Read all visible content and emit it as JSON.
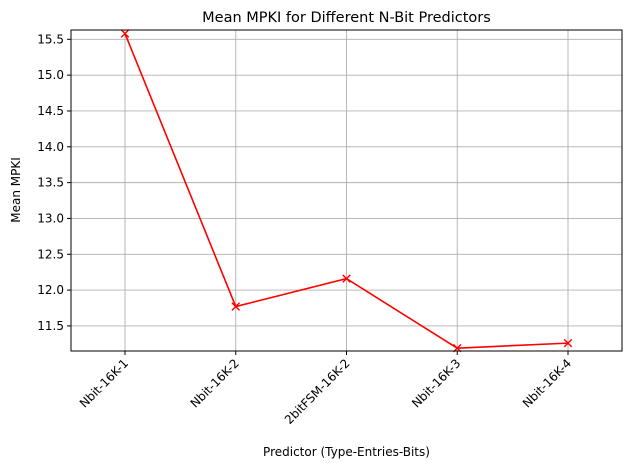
{
  "chart_data": {
    "type": "line",
    "title": "Mean MPKI for Different N-Bit Predictors",
    "xlabel": "Predictor (Type-Entries-Bits)",
    "ylabel": "Mean MPKI",
    "categories": [
      "Nbit-16K-1",
      "Nbit-16K-2",
      "2bitFSM-16K-2",
      "Nbit-16K-3",
      "Nbit-16K-4"
    ],
    "series": [
      {
        "values": [
          15.58,
          11.77,
          12.16,
          11.19,
          11.26
        ],
        "color": "#ff0000",
        "marker": "x"
      }
    ],
    "ylim": [
      11.15,
      15.63
    ],
    "yticks": [
      "11.5",
      "12.0",
      "12.5",
      "13.0",
      "13.5",
      "14.0",
      "14.5",
      "15.0",
      "15.5"
    ],
    "grid": true,
    "x_tick_rotation": 45
  }
}
